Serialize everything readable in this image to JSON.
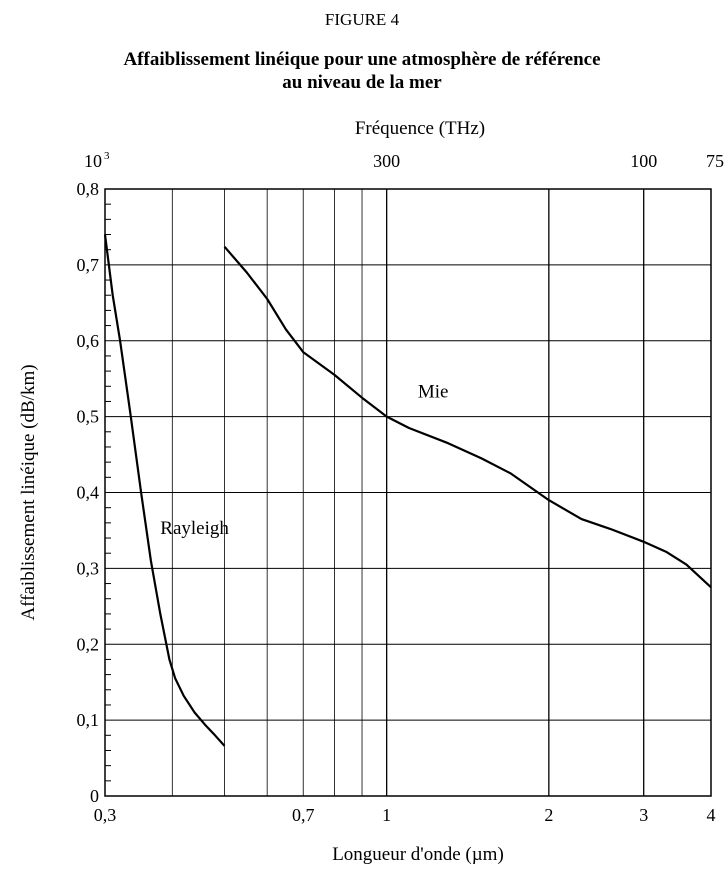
{
  "figure": {
    "label": "FIGURE 4",
    "title_lines": [
      "Affaiblissement linéique pour une atmosphère de référence",
      "au niveau de la mer"
    ]
  },
  "chart_data": {
    "type": "line",
    "xlabel": "Longueur d'onde (µm)",
    "ylabel": "Affaiblissement linéique (dB/km)",
    "top_axis_label": "Fréquence (THz)",
    "x_scale": "log",
    "xlim": [
      0.3,
      4
    ],
    "ylim": [
      0,
      0.8
    ],
    "grid": true,
    "x_tick_labels": [
      {
        "value": 0.3,
        "label": "0,3"
      },
      {
        "value": 0.7,
        "label": "0,7"
      },
      {
        "value": 1,
        "label": "1"
      },
      {
        "value": 2,
        "label": "2"
      },
      {
        "value": 3,
        "label": "3"
      },
      {
        "value": 4,
        "label": "4"
      }
    ],
    "x_gridlines": [
      0.4,
      0.5,
      0.6,
      0.7,
      0.8,
      0.9,
      1,
      2,
      3
    ],
    "y_ticks": [
      {
        "value": 0,
        "label": "0"
      },
      {
        "value": 0.1,
        "label": "0,1"
      },
      {
        "value": 0.2,
        "label": "0,2"
      },
      {
        "value": 0.3,
        "label": "0,3"
      },
      {
        "value": 0.4,
        "label": "0,4"
      },
      {
        "value": 0.5,
        "label": "0,5"
      },
      {
        "value": 0.6,
        "label": "0,6"
      },
      {
        "value": 0.7,
        "label": "0,7"
      },
      {
        "value": 0.8,
        "label": "0,8"
      }
    ],
    "top_ticks": [
      {
        "wavelength": 0.3,
        "base": "10",
        "exponent": "3"
      },
      {
        "wavelength": 1,
        "label": "300"
      },
      {
        "wavelength": 3,
        "label": "100"
      },
      {
        "wavelength": 4,
        "label": "75"
      }
    ],
    "series": [
      {
        "name": "Rayleigh",
        "label_at": [
          0.44,
          0.345
        ],
        "x": [
          0.3,
          0.31,
          0.32,
          0.335,
          0.35,
          0.365,
          0.38,
          0.395,
          0.405,
          0.42,
          0.44,
          0.46,
          0.48,
          0.5
        ],
        "y": [
          0.74,
          0.66,
          0.6,
          0.5,
          0.4,
          0.31,
          0.24,
          0.18,
          0.155,
          0.132,
          0.11,
          0.094,
          0.08,
          0.066
        ]
      },
      {
        "name": "Mie",
        "label_at": [
          1.22,
          0.525
        ],
        "x": [
          0.5,
          0.55,
          0.6,
          0.65,
          0.7,
          0.8,
          0.9,
          1.0,
          1.1,
          1.3,
          1.5,
          1.7,
          2.0,
          2.3,
          2.6,
          3.0,
          3.3,
          3.6,
          4.0
        ],
        "y": [
          0.724,
          0.69,
          0.655,
          0.615,
          0.585,
          0.555,
          0.525,
          0.5,
          0.485,
          0.465,
          0.445,
          0.425,
          0.39,
          0.365,
          0.352,
          0.335,
          0.322,
          0.305,
          0.275
        ]
      }
    ]
  }
}
